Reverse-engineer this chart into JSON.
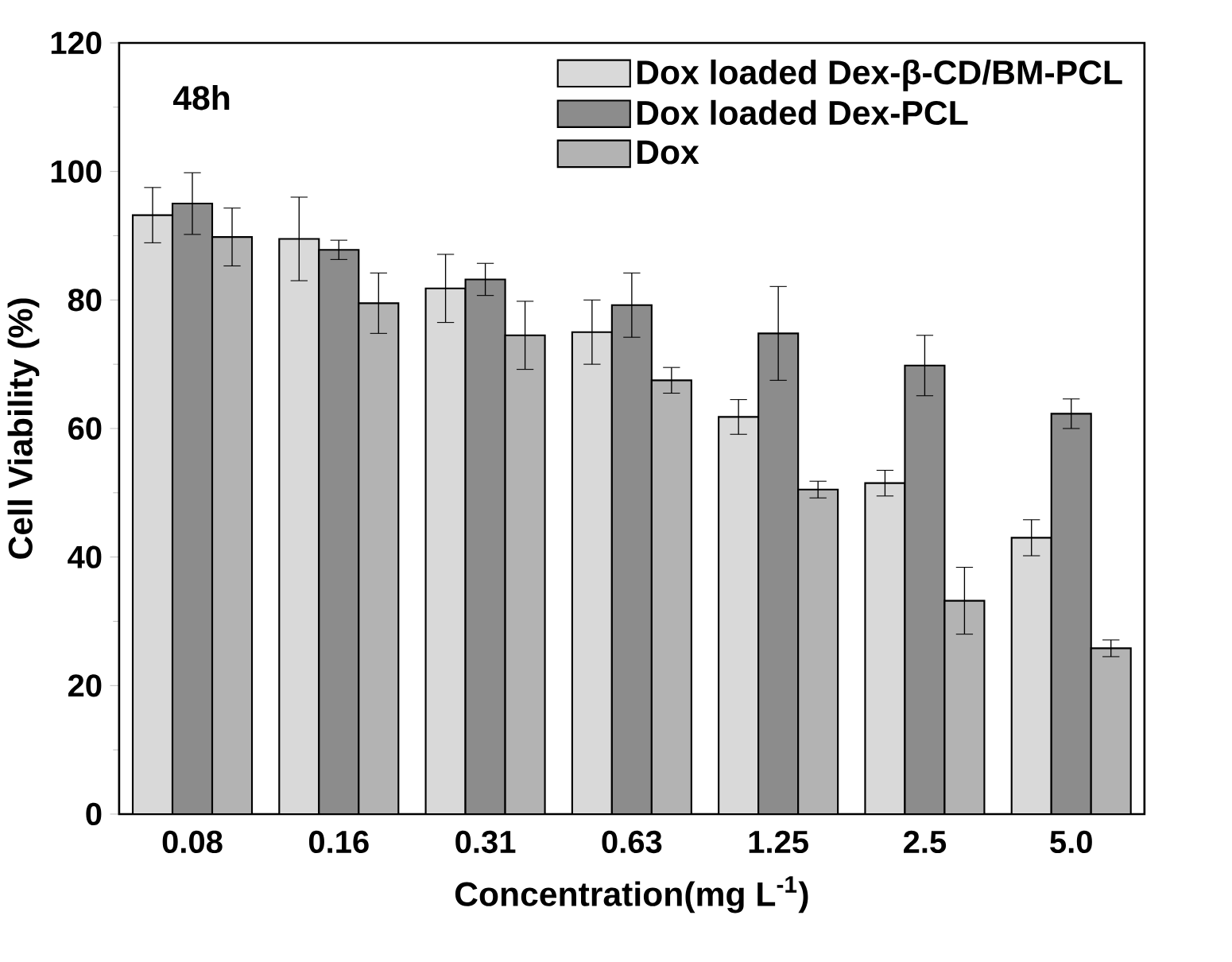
{
  "chart_data": {
    "type": "bar",
    "xlabel": "Concentration(mg L$^{-1}$)",
    "ylabel": "Cell Viability (%)",
    "annotations": [
      "48h"
    ],
    "categories": [
      "0.08",
      "0.16",
      "0.31",
      "0.63",
      "1.25",
      "2.5",
      "5.0"
    ],
    "series": [
      {
        "name": "Dox loaded Dex-β-CD/BM-PCL",
        "color": "#d9d9d9",
        "values": [
          93.2,
          89.5,
          81.8,
          75.0,
          61.8,
          51.5,
          43.0
        ],
        "errors": [
          4.3,
          6.5,
          5.3,
          5.0,
          2.7,
          2.0,
          2.8
        ]
      },
      {
        "name": "Dox loaded Dex-PCL",
        "color": "#8c8c8c",
        "values": [
          95.0,
          87.8,
          83.2,
          79.2,
          74.8,
          69.8,
          62.3
        ],
        "errors": [
          4.8,
          1.5,
          2.5,
          5.0,
          7.3,
          4.7,
          2.3
        ]
      },
      {
        "name": "Dox",
        "color": "#b3b3b3",
        "values": [
          89.8,
          79.5,
          74.5,
          67.5,
          50.5,
          33.2,
          25.8
        ],
        "errors": [
          4.5,
          4.7,
          5.3,
          2.0,
          1.3,
          5.2,
          1.3
        ]
      }
    ],
    "ylim": [
      0,
      120
    ],
    "yticks": [
      0,
      20,
      40,
      60,
      80,
      100,
      120
    ],
    "legend": "top right",
    "grid": false
  }
}
